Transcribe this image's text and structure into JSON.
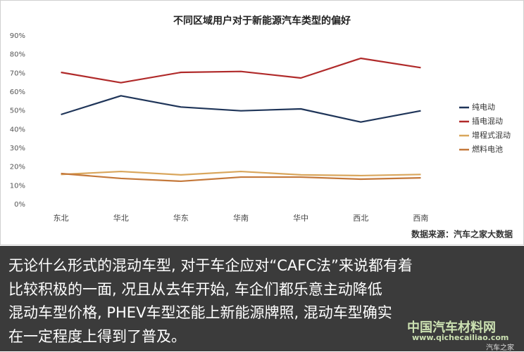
{
  "chart_data": {
    "type": "line",
    "title": "不同区域用户对于新能源汽车类型的偏好",
    "source": "数据来源：汽车之家大数据",
    "categories": [
      "东北",
      "华北",
      "华东",
      "华南",
      "华中",
      "西北",
      "西南"
    ],
    "series": [
      {
        "name": "纯电动",
        "color": "#1f3559",
        "values": [
          48,
          58,
          52,
          50,
          51,
          44,
          50
        ]
      },
      {
        "name": "插电混动",
        "color": "#b02a2a",
        "values": [
          70.5,
          65,
          70.5,
          71,
          67.5,
          78,
          73
        ]
      },
      {
        "name": "增程式混动",
        "color": "#d9a65c",
        "values": [
          16,
          17.6,
          15.8,
          17.6,
          15.8,
          15.4,
          16
        ]
      },
      {
        "name": "燃料电池",
        "color": "#c4783a",
        "values": [
          16.5,
          13.9,
          12.4,
          14.6,
          14.6,
          13.5,
          14.2
        ]
      }
    ],
    "ylim": [
      0,
      90
    ],
    "yticks": [
      {
        "value": 0,
        "label": "0%"
      },
      {
        "value": 10,
        "label": "10%"
      },
      {
        "value": 20,
        "label": "20%"
      },
      {
        "value": 30,
        "label": "30%"
      },
      {
        "value": 40,
        "label": "40%"
      },
      {
        "value": 50,
        "label": "50%"
      },
      {
        "value": 60,
        "label": "60%"
      },
      {
        "value": 70,
        "label": "70%"
      },
      {
        "value": 80,
        "label": "80%"
      },
      {
        "value": 90,
        "label": "90%"
      }
    ],
    "grid": false,
    "legend": "right"
  },
  "caption": {
    "lines": [
      "无论什么形式的混动车型, 对于车企应对“CAFC法”来说都有着",
      "比较积极的一面, 况且从去年开始, 车企们都乐意主动降低",
      "混动车型价格, PHEV车型还能上新能源牌照, 混动车型确实",
      "在一定程度上得到了普及。"
    ]
  },
  "watermark": {
    "site": "中国汽车材料网",
    "url": "www.qichecailiao.com",
    "brand": "汽车之家"
  }
}
